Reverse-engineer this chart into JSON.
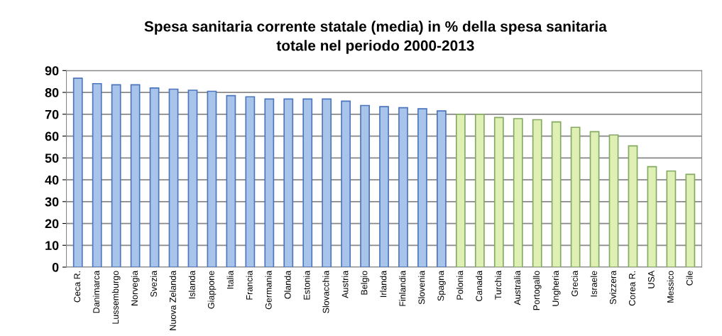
{
  "chart_data": {
    "type": "bar",
    "title": "Spesa sanitaria corrente statale (media) in % della spesa sanitaria\ntotale nel periodo 2000-2013",
    "categories": [
      "Ceca R.",
      "Danimarca",
      "Lussemburgo",
      "Norvegia",
      "Svezia",
      "Nuova Zelanda",
      "Islanda",
      "Giappone",
      "Italia",
      "Francia",
      "Germania",
      "Olanda",
      "Estonia",
      "Slovacchia",
      "Austria",
      "Belgio",
      "Irlanda",
      "Finlandia",
      "Slovenia",
      "Spagna",
      "Polonia",
      "Canada",
      "Turchia",
      "Australia",
      "Portogallo",
      "Ungheria",
      "Grecia",
      "Israele",
      "Svizzera",
      "Corea R.",
      "USA",
      "Messico",
      "Cile"
    ],
    "values": [
      86.5,
      84,
      83.5,
      83.5,
      82,
      81.5,
      81,
      80.5,
      78.5,
      78,
      77,
      77,
      77,
      77,
      76,
      74,
      73.5,
      73,
      72.5,
      71.5,
      70,
      70,
      68.5,
      68,
      67.5,
      66.5,
      64,
      62,
      60.5,
      55.5,
      46,
      44,
      42.5
    ],
    "colors": [
      "#a9c4eb",
      "#a9c4eb",
      "#a9c4eb",
      "#a9c4eb",
      "#a9c4eb",
      "#a9c4eb",
      "#a9c4eb",
      "#a9c4eb",
      "#a9c4eb",
      "#a9c4eb",
      "#a9c4eb",
      "#a9c4eb",
      "#a9c4eb",
      "#a9c4eb",
      "#a9c4eb",
      "#a9c4eb",
      "#a9c4eb",
      "#a9c4eb",
      "#a9c4eb",
      "#a9c4eb",
      "#def0b4",
      "#def0b4",
      "#def0b4",
      "#def0b4",
      "#def0b4",
      "#def0b4",
      "#def0b4",
      "#def0b4",
      "#def0b4",
      "#def0b4",
      "#def0b4",
      "#def0b4",
      "#def0b4"
    ],
    "ylim": [
      0,
      90
    ],
    "yticks": [
      0,
      10,
      20,
      30,
      40,
      50,
      60,
      70,
      80,
      90
    ],
    "grid": "y"
  }
}
